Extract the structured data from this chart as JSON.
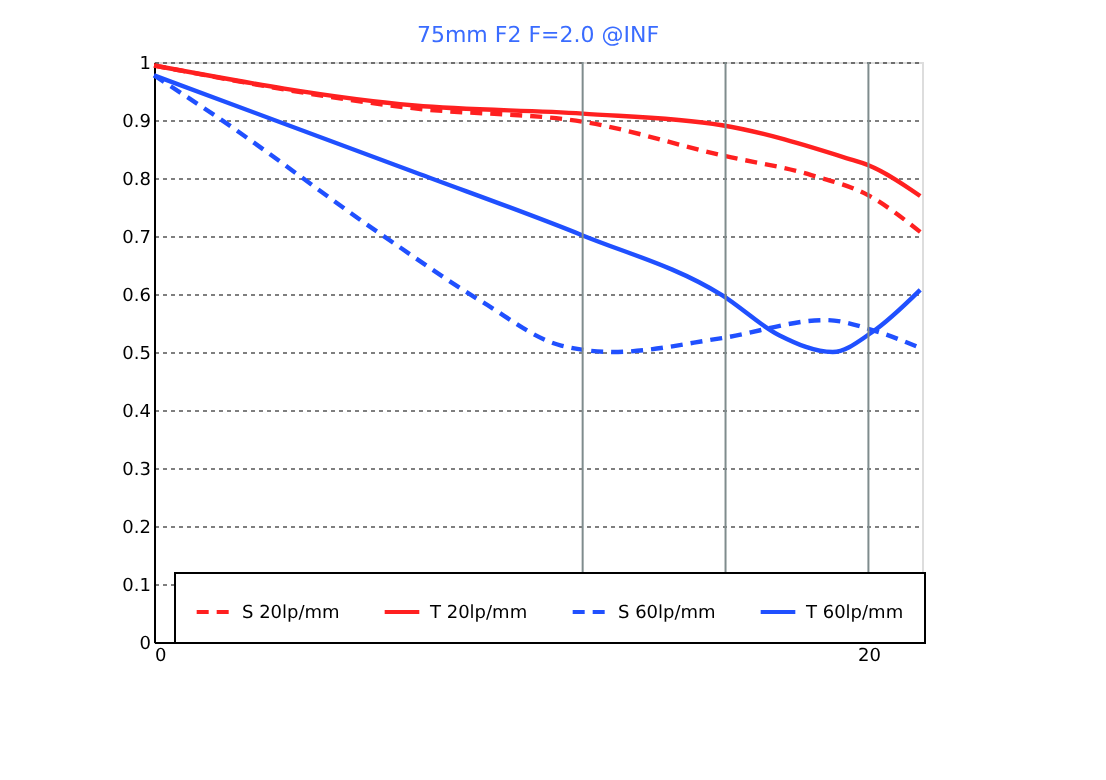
{
  "chart_data": {
    "type": "line",
    "title": "75mm F2  F=2.0  @INF",
    "xlim": [
      0,
      21.5
    ],
    "xticks": [
      0,
      20
    ],
    "ylim": [
      0,
      1
    ],
    "yticks": [
      {
        "value": 0,
        "label": "0"
      },
      0.1,
      0.2,
      0.3,
      0.4,
      0.5,
      0.6,
      0.7,
      0.8,
      0.9,
      {
        "value": 1,
        "label": "1"
      }
    ],
    "grid": "y",
    "legend": "bottom",
    "marker": "none",
    "ref_lines": [
      {
        "axis": "x",
        "value": 12,
        "color": "#7f8c8d"
      },
      {
        "axis": "x",
        "value": 16,
        "color": "#7f8c8d"
      },
      {
        "axis": "x",
        "value": 20,
        "color": "#7f8c8d"
      }
    ],
    "series": [
      {
        "name": "S 20lp/mm",
        "color": "#ff2020",
        "line_style": "dashed",
        "x": [
          0,
          7.3,
          12,
          15.9,
          18.4,
          20,
          21.45
        ],
        "values": [
          0.994,
          0.92,
          0.897,
          0.839,
          0.805,
          0.77,
          0.707
        ]
      },
      {
        "name": "T 20lp/mm",
        "color": "#ff2020",
        "line_style": "solid",
        "x": [
          0,
          7.3,
          12,
          15.9,
          19.4,
          20,
          21.45
        ],
        "values": [
          0.994,
          0.925,
          0.911,
          0.891,
          0.834,
          0.822,
          0.769
        ]
      },
      {
        "name": "S 60lp/mm",
        "color": "#2050ff",
        "line_style": "dashed",
        "x": [
          0,
          1.7,
          6.4,
          9.2,
          11.4,
          12.85,
          15.9,
          18.8,
          20.3,
          21.45
        ],
        "values": [
          0.977,
          0.908,
          0.701,
          0.586,
          0.511,
          0.5,
          0.524,
          0.555,
          0.534,
          0.507
        ]
      },
      {
        "name": "T 60lp/mm",
        "color": "#2050ff",
        "line_style": "solid",
        "x": [
          0,
          7.3,
          12,
          15.9,
          17.5,
          19.0,
          20.1,
          21.45
        ],
        "values": [
          0.977,
          0.81,
          0.701,
          0.598,
          0.529,
          0.5,
          0.534,
          0.607
        ]
      }
    ]
  }
}
